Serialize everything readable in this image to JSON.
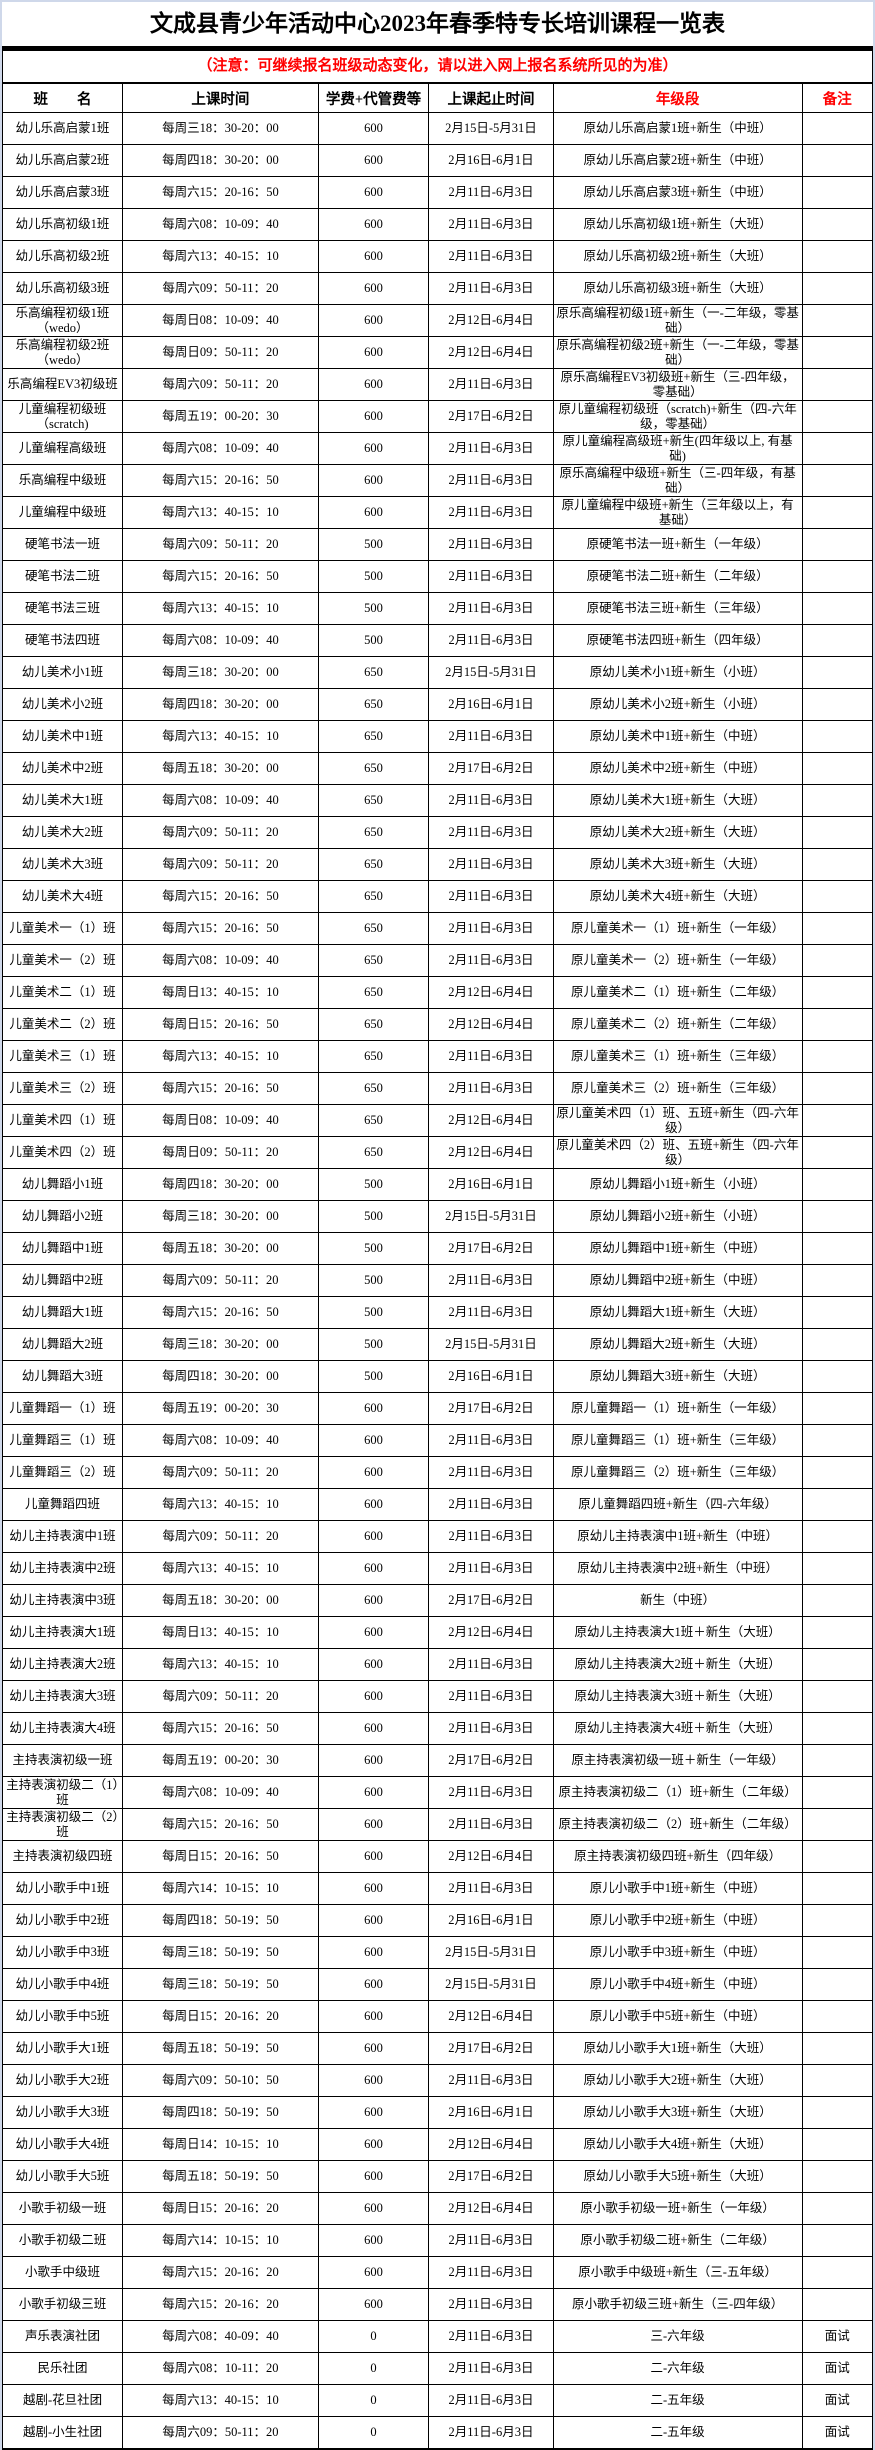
{
  "page": {
    "title": "文成县青少年活动中心2023年春季特专长培训课程一览表",
    "notice": "（注意：可继续报名班级动态变化，请以进入网上报名系统所见的为准）"
  },
  "colors": {
    "accent_red": "#ff0000",
    "border": "#000000",
    "page_edge": "#cfd8ea",
    "background": "#ffffff"
  },
  "table": {
    "columns": [
      {
        "label": "班　　名",
        "red": false
      },
      {
        "label": "上课时间",
        "red": false
      },
      {
        "label": "学费+代管费等",
        "red": false
      },
      {
        "label": "上课起止时间",
        "red": false
      },
      {
        "label": "年级段",
        "red": true
      },
      {
        "label": "备注",
        "red": true
      }
    ],
    "rows": [
      [
        "幼儿乐高启蒙1班",
        "每周三18：30-20：00",
        "600",
        "2月15日-5月31日",
        "原幼儿乐高启蒙1班+新生（中班）",
        ""
      ],
      [
        "幼儿乐高启蒙2班",
        "每周四18：30-20：00",
        "600",
        "2月16日-6月1日",
        "原幼儿乐高启蒙2班+新生（中班）",
        ""
      ],
      [
        "幼儿乐高启蒙3班",
        "每周六15：20-16：50",
        "600",
        "2月11日-6月3日",
        "原幼儿乐高启蒙3班+新生（中班）",
        ""
      ],
      [
        "幼儿乐高初级1班",
        "每周六08：10-09：40",
        "600",
        "2月11日-6月3日",
        "原幼儿乐高初级1班+新生（大班）",
        ""
      ],
      [
        "幼儿乐高初级2班",
        "每周六13：40-15：10",
        "600",
        "2月11日-6月3日",
        "原幼儿乐高初级2班+新生（大班）",
        ""
      ],
      [
        "幼儿乐高初级3班",
        "每周六09：50-11：20",
        "600",
        "2月11日-6月3日",
        "原幼儿乐高初级3班+新生（大班）",
        ""
      ],
      [
        "乐高编程初级1班（wedo）",
        "每周日08：10-09：40",
        "600",
        "2月12日-6月4日",
        "原乐高编程初级1班+新生（一-二年级，零基础）",
        ""
      ],
      [
        "乐高编程初级2班（wedo）",
        "每周日09：50-11：20",
        "600",
        "2月12日-6月4日",
        "原乐高编程初级2班+新生（一-二年级，零基础）",
        ""
      ],
      [
        "乐高编程EV3初级班",
        "每周六09：50-11：20",
        "600",
        "2月11日-6月3日",
        "原乐高编程EV3初级班+新生（三-四年级，零基础）",
        ""
      ],
      [
        "儿童编程初级班（scratch)",
        "每周五19：00-20：30",
        "600",
        "2月17日-6月2日",
        "原儿童编程初级班（scratch)+新生（四-六年级，零基础）",
        ""
      ],
      [
        "儿童编程高级班",
        "每周六08：10-09：40",
        "600",
        "2月11日-6月3日",
        "原儿童编程高级班+新生(四年级以上, 有基础)",
        ""
      ],
      [
        "乐高编程中级班",
        "每周六15：20-16：50",
        "600",
        "2月11日-6月3日",
        "原乐高编程中级班+新生（三-四年级，有基础）",
        ""
      ],
      [
        "儿童编程中级班",
        "每周六13：40-15：10",
        "600",
        "2月11日-6月3日",
        "原儿童编程中级班+新生（三年级以上，有基础）",
        ""
      ],
      [
        "硬笔书法一班",
        "每周六09：50-11：20",
        "500",
        "2月11日-6月3日",
        "原硬笔书法一班+新生（一年级）",
        ""
      ],
      [
        "硬笔书法二班",
        "每周六15：20-16：50",
        "500",
        "2月11日-6月3日",
        "原硬笔书法二班+新生（二年级）",
        ""
      ],
      [
        "硬笔书法三班",
        "每周六13：40-15：10",
        "500",
        "2月11日-6月3日",
        "原硬笔书法三班+新生（三年级）",
        ""
      ],
      [
        "硬笔书法四班",
        "每周六08：10-09：40",
        "500",
        "2月11日-6月3日",
        "原硬笔书法四班+新生（四年级）",
        ""
      ],
      [
        "幼儿美术小1班",
        "每周三18：30-20：00",
        "650",
        "2月15日-5月31日",
        "原幼儿美术小1班+新生（小班）",
        ""
      ],
      [
        "幼儿美术小2班",
        "每周四18：30-20：00",
        "650",
        "2月16日-6月1日",
        "原幼儿美术小2班+新生（小班）",
        ""
      ],
      [
        "幼儿美术中1班",
        "每周六13：40-15：10",
        "650",
        "2月11日-6月3日",
        "原幼儿美术中1班+新生（中班）",
        ""
      ],
      [
        "幼儿美术中2班",
        "每周五18：30-20：00",
        "650",
        "2月17日-6月2日",
        "原幼儿美术中2班+新生（中班）",
        ""
      ],
      [
        "幼儿美术大1班",
        "每周六08：10-09：40",
        "650",
        "2月11日-6月3日",
        "原幼儿美术大1班+新生（大班）",
        ""
      ],
      [
        "幼儿美术大2班",
        "每周六09：50-11：20",
        "650",
        "2月11日-6月3日",
        "原幼儿美术大2班+新生（大班）",
        ""
      ],
      [
        "幼儿美术大3班",
        "每周六09：50-11：20",
        "650",
        "2月11日-6月3日",
        "原幼儿美术大3班+新生（大班）",
        ""
      ],
      [
        "幼儿美术大4班",
        "每周六15：20-16：50",
        "650",
        "2月11日-6月3日",
        "原幼儿美术大4班+新生（大班）",
        ""
      ],
      [
        "儿童美术一（1）班",
        "每周六15：20-16：50",
        "650",
        "2月11日-6月3日",
        "原儿童美术一（1）班+新生（一年级）",
        ""
      ],
      [
        "儿童美术一（2）班",
        "每周六08：10-09：40",
        "650",
        "2月11日-6月3日",
        "原儿童美术一（2）班+新生（一年级）",
        ""
      ],
      [
        "儿童美术二（1）班",
        "每周日13：40-15：10",
        "650",
        "2月12日-6月4日",
        "原儿童美术二（1）班+新生（二年级）",
        ""
      ],
      [
        "儿童美术二（2）班",
        "每周日15：20-16：50",
        "650",
        "2月12日-6月4日",
        "原儿童美术二（2）班+新生（二年级）",
        ""
      ],
      [
        "儿童美术三（1）班",
        "每周六13：40-15：10",
        "650",
        "2月11日-6月3日",
        "原儿童美术三（1）班+新生（三年级）",
        ""
      ],
      [
        "儿童美术三（2）班",
        "每周六15：20-16：50",
        "650",
        "2月11日-6月3日",
        "原儿童美术三（2）班+新生（三年级）",
        ""
      ],
      [
        "儿童美术四（1）班",
        "每周日08：10-09：40",
        "650",
        "2月12日-6月4日",
        "原儿童美术四（1）班、五班+新生（四-六年级）",
        ""
      ],
      [
        "儿童美术四（2）班",
        "每周日09：50-11：20",
        "650",
        "2月12日-6月4日",
        "原儿童美术四（2）班、五班+新生（四-六年级）",
        ""
      ],
      [
        "幼儿舞蹈小1班",
        "每周四18：30-20：00",
        "500",
        "2月16日-6月1日",
        "原幼儿舞蹈小1班+新生（小班）",
        ""
      ],
      [
        "幼儿舞蹈小2班",
        "每周三18：30-20：00",
        "500",
        "2月15日-5月31日",
        "原幼儿舞蹈小2班+新生（小班）",
        ""
      ],
      [
        "幼儿舞蹈中1班",
        "每周五18：30-20：00",
        "500",
        "2月17日-6月2日",
        "原幼儿舞蹈中1班+新生（中班）",
        ""
      ],
      [
        "幼儿舞蹈中2班",
        "每周六09：50-11：20",
        "500",
        "2月11日-6月3日",
        "原幼儿舞蹈中2班+新生（中班）",
        ""
      ],
      [
        "幼儿舞蹈大1班",
        "每周六15：20-16：50",
        "500",
        "2月11日-6月3日",
        "原幼儿舞蹈大1班+新生（大班）",
        ""
      ],
      [
        "幼儿舞蹈大2班",
        "每周三18：30-20：00",
        "500",
        "2月15日-5月31日",
        "原幼儿舞蹈大2班+新生（大班）",
        ""
      ],
      [
        "幼儿舞蹈大3班",
        "每周四18：30-20：00",
        "500",
        "2月16日-6月1日",
        "原幼儿舞蹈大3班+新生（大班）",
        ""
      ],
      [
        "儿童舞蹈一（1）班",
        "每周五19：00-20：30",
        "600",
        "2月17日-6月2日",
        "原儿童舞蹈一（1）班+新生（一年级）",
        ""
      ],
      [
        "儿童舞蹈三（1）班",
        "每周六08：10-09：40",
        "600",
        "2月11日-6月3日",
        "原儿童舞蹈三（1）班+新生（三年级）",
        ""
      ],
      [
        "儿童舞蹈三（2）班",
        "每周六09：50-11：20",
        "600",
        "2月11日-6月3日",
        "原儿童舞蹈三（2）班+新生（三年级）",
        ""
      ],
      [
        "儿童舞蹈四班",
        "每周六13：40-15：10",
        "600",
        "2月11日-6月3日",
        "原儿童舞蹈四班+新生（四-六年级）",
        ""
      ],
      [
        "幼儿主持表演中1班",
        "每周六09：50-11：20",
        "600",
        "2月11日-6月3日",
        "原幼儿主持表演中1班+新生（中班）",
        ""
      ],
      [
        "幼儿主持表演中2班",
        "每周六13：40-15：10",
        "600",
        "2月11日-6月3日",
        "原幼儿主持表演中2班+新生（中班）",
        ""
      ],
      [
        "幼儿主持表演中3班",
        "每周五18：30-20：00",
        "600",
        "2月17日-6月2日",
        "新生（中班）",
        ""
      ],
      [
        "幼儿主持表演大1班",
        "每周日13：40-15：10",
        "600",
        "2月12日-6月4日",
        "原幼儿主持表演大1班＋新生（大班）",
        ""
      ],
      [
        "幼儿主持表演大2班",
        "每周六13：40-15：10",
        "600",
        "2月11日-6月3日",
        "原幼儿主持表演大2班＋新生（大班）",
        ""
      ],
      [
        "幼儿主持表演大3班",
        "每周六09：50-11：20",
        "600",
        "2月11日-6月3日",
        "原幼儿主持表演大3班＋新生（大班）",
        ""
      ],
      [
        "幼儿主持表演大4班",
        "每周六15：20-16：50",
        "600",
        "2月11日-6月3日",
        "原幼儿主持表演大4班＋新生（大班）",
        ""
      ],
      [
        "主持表演初级一班",
        "每周五19：00-20：30",
        "600",
        "2月17日-6月2日",
        "原主持表演初级一班＋新生（一年级）",
        ""
      ],
      [
        "主持表演初级二（1）班",
        "每周六08：10-09：40",
        "600",
        "2月11日-6月3日",
        "原主持表演初级二（1）班+新生（二年级）",
        ""
      ],
      [
        "主持表演初级二（2）班",
        "每周六15：20-16：50",
        "600",
        "2月11日-6月3日",
        "原主持表演初级二（2）班+新生（二年级）",
        ""
      ],
      [
        "主持表演初级四班",
        "每周日15：20-16：50",
        "600",
        "2月12日-6月4日",
        "原主持表演初级四班+新生（四年级）",
        ""
      ],
      [
        "幼儿小歌手中1班",
        "每周六14：10-15：10",
        "600",
        "2月11日-6月3日",
        "原儿小歌手中1班+新生（中班）",
        ""
      ],
      [
        "幼儿小歌手中2班",
        "每周四18：50-19：50",
        "600",
        "2月16日-6月1日",
        "原儿小歌手中2班+新生（中班）",
        ""
      ],
      [
        "幼儿小歌手中3班",
        "每周三18：50-19：50",
        "600",
        "2月15日-5月31日",
        "原儿小歌手中3班+新生（中班）",
        ""
      ],
      [
        "幼儿小歌手中4班",
        "每周三18：50-19：50",
        "600",
        "2月15日-5月31日",
        "原儿小歌手中4班+新生（中班）",
        ""
      ],
      [
        "幼儿小歌手中5班",
        "每周日15：20-16：20",
        "600",
        "2月12日-6月4日",
        "原儿小歌手中5班+新生（中班）",
        ""
      ],
      [
        "幼儿小歌手大1班",
        "每周五18：50-19：50",
        "600",
        "2月17日-6月2日",
        "原幼儿小歌手大1班+新生（大班）",
        ""
      ],
      [
        "幼儿小歌手大2班",
        "每周六09：50-10：50",
        "600",
        "2月11日-6月3日",
        "原幼儿小歌手大2班+新生（大班）",
        ""
      ],
      [
        "幼儿小歌手大3班",
        "每周四18：50-19：50",
        "600",
        "2月16日-6月1日",
        "原幼儿小歌手大3班+新生（大班）",
        ""
      ],
      [
        "幼儿小歌手大4班",
        "每周日14：10-15：10",
        "600",
        "2月12日-6月4日",
        "原幼儿小歌手大4班+新生（大班）",
        ""
      ],
      [
        "幼儿小歌手大5班",
        "每周五18：50-19：50",
        "600",
        "2月17日-6月2日",
        "原幼儿小歌手大5班+新生（大班）",
        ""
      ],
      [
        "小歌手初级一班",
        "每周日15：20-16：20",
        "600",
        "2月12日-6月4日",
        "原小歌手初级一班+新生（一年级）",
        ""
      ],
      [
        "小歌手初级二班",
        "每周六14：10-15：10",
        "600",
        "2月11日-6月3日",
        "原小歌手初级二班+新生（二年级）",
        ""
      ],
      [
        "小歌手中级班",
        "每周六15：20-16：20",
        "600",
        "2月11日-6月3日",
        "原小歌手中级班+新生（三-五年级）",
        ""
      ],
      [
        "小歌手初级三班",
        "每周六15：20-16：20",
        "600",
        "2月11日-6月3日",
        "原小歌手初级三班+新生（三-四年级）",
        ""
      ],
      [
        "声乐表演社团",
        "每周六08：40-09：40",
        "0",
        "2月11日-6月3日",
        "三-六年级",
        "面试"
      ],
      [
        "民乐社团",
        "每周六08：10-11：20",
        "0",
        "2月11日-6月3日",
        "二-六年级",
        "面试"
      ],
      [
        "越剧-花旦社团",
        "每周六13：40-15：10",
        "0",
        "2月11日-6月3日",
        "二-五年级",
        "面试"
      ],
      [
        "越剧-小生社团",
        "每周六09：50-11：20",
        "0",
        "2月11日-6月3日",
        "二-五年级",
        "面试"
      ]
    ]
  }
}
